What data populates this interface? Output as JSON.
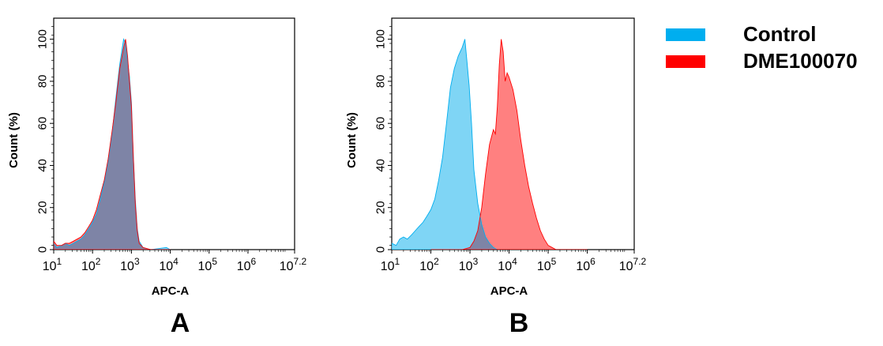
{
  "colors": {
    "control": "#00AEEF",
    "sample": "#FF0000",
    "control_fill": "#7FD5F5",
    "sample_fill": "#FF8080",
    "overlap_fill": "#7E84A6"
  },
  "legend": [
    {
      "label": "Control",
      "color": "#00AEEF"
    },
    {
      "label": "DME100070",
      "color": "#FF0000"
    }
  ],
  "chart_data": [
    {
      "type": "area",
      "panel_label": "A",
      "xlabel": "APC-A",
      "ylabel": "Count  (%)",
      "x_scale": "log10",
      "xlim": [
        10,
        15848932
      ],
      "ylim": [
        0,
        110
      ],
      "x_ticks": [
        {
          "base": "10",
          "exp": "1",
          "value": 10
        },
        {
          "base": "10",
          "exp": "2",
          "value": 100
        },
        {
          "base": "10",
          "exp": "3",
          "value": 1000
        },
        {
          "base": "10",
          "exp": "4",
          "value": 10000
        },
        {
          "base": "10",
          "exp": "5",
          "value": 100000
        },
        {
          "base": "10",
          "exp": "6",
          "value": 1000000
        },
        {
          "base": "10",
          "exp": "7.2",
          "value": 15848932
        }
      ],
      "y_ticks": [
        "0",
        "20",
        "40",
        "60",
        "80",
        "100"
      ],
      "series": [
        {
          "name": "Control",
          "points": [
            [
              10,
              3
            ],
            [
              12,
              1
            ],
            [
              16,
              2
            ],
            [
              20,
              3
            ],
            [
              25,
              2
            ],
            [
              32,
              3
            ],
            [
              40,
              4
            ],
            [
              50,
              5
            ],
            [
              63,
              7
            ],
            [
              80,
              10
            ],
            [
              100,
              13
            ],
            [
              126,
              17
            ],
            [
              158,
              24
            ],
            [
              200,
              32
            ],
            [
              251,
              42
            ],
            [
              316,
              55
            ],
            [
              398,
              72
            ],
            [
              501,
              88
            ],
            [
              631,
              100
            ],
            [
              710,
              98
            ],
            [
              794,
              90
            ],
            [
              891,
              82
            ],
            [
              1000,
              70
            ],
            [
              1122,
              45
            ],
            [
              1259,
              24
            ],
            [
              1413,
              10
            ],
            [
              1585,
              4
            ],
            [
              1995,
              1
            ],
            [
              3162,
              0
            ],
            [
              7943,
              1
            ],
            [
              10000,
              0
            ]
          ]
        },
        {
          "name": "DME100070",
          "points": [
            [
              10,
              4
            ],
            [
              12,
              2
            ],
            [
              16,
              2
            ],
            [
              20,
              3
            ],
            [
              25,
              3
            ],
            [
              32,
              4
            ],
            [
              40,
              5
            ],
            [
              50,
              6
            ],
            [
              63,
              8
            ],
            [
              80,
              11
            ],
            [
              100,
              14
            ],
            [
              126,
              19
            ],
            [
              158,
              26
            ],
            [
              200,
              33
            ],
            [
              251,
              43
            ],
            [
              316,
              56
            ],
            [
              398,
              70
            ],
            [
              501,
              86
            ],
            [
              631,
              96
            ],
            [
              708,
              100
            ],
            [
              794,
              92
            ],
            [
              891,
              80
            ],
            [
              1000,
              68
            ],
            [
              1122,
              44
            ],
            [
              1259,
              22
            ],
            [
              1413,
              9
            ],
            [
              1585,
              3
            ],
            [
              1995,
              1
            ],
            [
              3162,
              0
            ],
            [
              7943,
              0
            ],
            [
              10000,
              0
            ]
          ]
        }
      ]
    },
    {
      "type": "area",
      "panel_label": "B",
      "xlabel": "APC-A",
      "ylabel": "Count  (%)",
      "x_scale": "log10",
      "xlim": [
        10,
        15848932
      ],
      "ylim": [
        0,
        110
      ],
      "x_ticks": [
        {
          "base": "10",
          "exp": "1",
          "value": 10
        },
        {
          "base": "10",
          "exp": "2",
          "value": 100
        },
        {
          "base": "10",
          "exp": "3",
          "value": 1000
        },
        {
          "base": "10",
          "exp": "4",
          "value": 10000
        },
        {
          "base": "10",
          "exp": "5",
          "value": 100000
        },
        {
          "base": "10",
          "exp": "6",
          "value": 1000000
        },
        {
          "base": "10",
          "exp": "7.2",
          "value": 15848932
        }
      ],
      "y_ticks": [
        "0",
        "20",
        "40",
        "60",
        "80",
        "100"
      ],
      "series": [
        {
          "name": "Control",
          "points": [
            [
              10,
              3
            ],
            [
              13,
              2
            ],
            [
              16,
              5
            ],
            [
              20,
              6
            ],
            [
              25,
              5
            ],
            [
              32,
              7
            ],
            [
              40,
              9
            ],
            [
              50,
              11
            ],
            [
              63,
              13
            ],
            [
              80,
              16
            ],
            [
              100,
              19
            ],
            [
              126,
              24
            ],
            [
              158,
              33
            ],
            [
              200,
              44
            ],
            [
              251,
              60
            ],
            [
              316,
              77
            ],
            [
              398,
              86
            ],
            [
              501,
              92
            ],
            [
              631,
              96
            ],
            [
              741,
              100
            ],
            [
              832,
              90
            ],
            [
              955,
              78
            ],
            [
              1096,
              60
            ],
            [
              1259,
              38
            ],
            [
              1585,
              22
            ],
            [
              1995,
              12
            ],
            [
              2512,
              6
            ],
            [
              3162,
              3
            ],
            [
              3981,
              1
            ],
            [
              5012,
              0
            ],
            [
              10000,
              0
            ]
          ]
        },
        {
          "name": "DME100070",
          "points": [
            [
              100,
              0
            ],
            [
              631,
              0
            ],
            [
              1000,
              1
            ],
            [
              1259,
              4
            ],
            [
              1585,
              9
            ],
            [
              1995,
              20
            ],
            [
              2512,
              36
            ],
            [
              3162,
              50
            ],
            [
              3981,
              57
            ],
            [
              4467,
              55
            ],
            [
              5012,
              68
            ],
            [
              5623,
              88
            ],
            [
              6310,
              100
            ],
            [
              7079,
              94
            ],
            [
              7943,
              80
            ],
            [
              8913,
              84
            ],
            [
              10000,
              82
            ],
            [
              12589,
              76
            ],
            [
              15849,
              66
            ],
            [
              19953,
              52
            ],
            [
              25119,
              40
            ],
            [
              31623,
              30
            ],
            [
              39811,
              22
            ],
            [
              50119,
              15
            ],
            [
              63096,
              9
            ],
            [
              79433,
              5
            ],
            [
              100000,
              2
            ],
            [
              125893,
              1
            ],
            [
              158489,
              0
            ],
            [
              1000000,
              0
            ]
          ]
        }
      ]
    }
  ]
}
